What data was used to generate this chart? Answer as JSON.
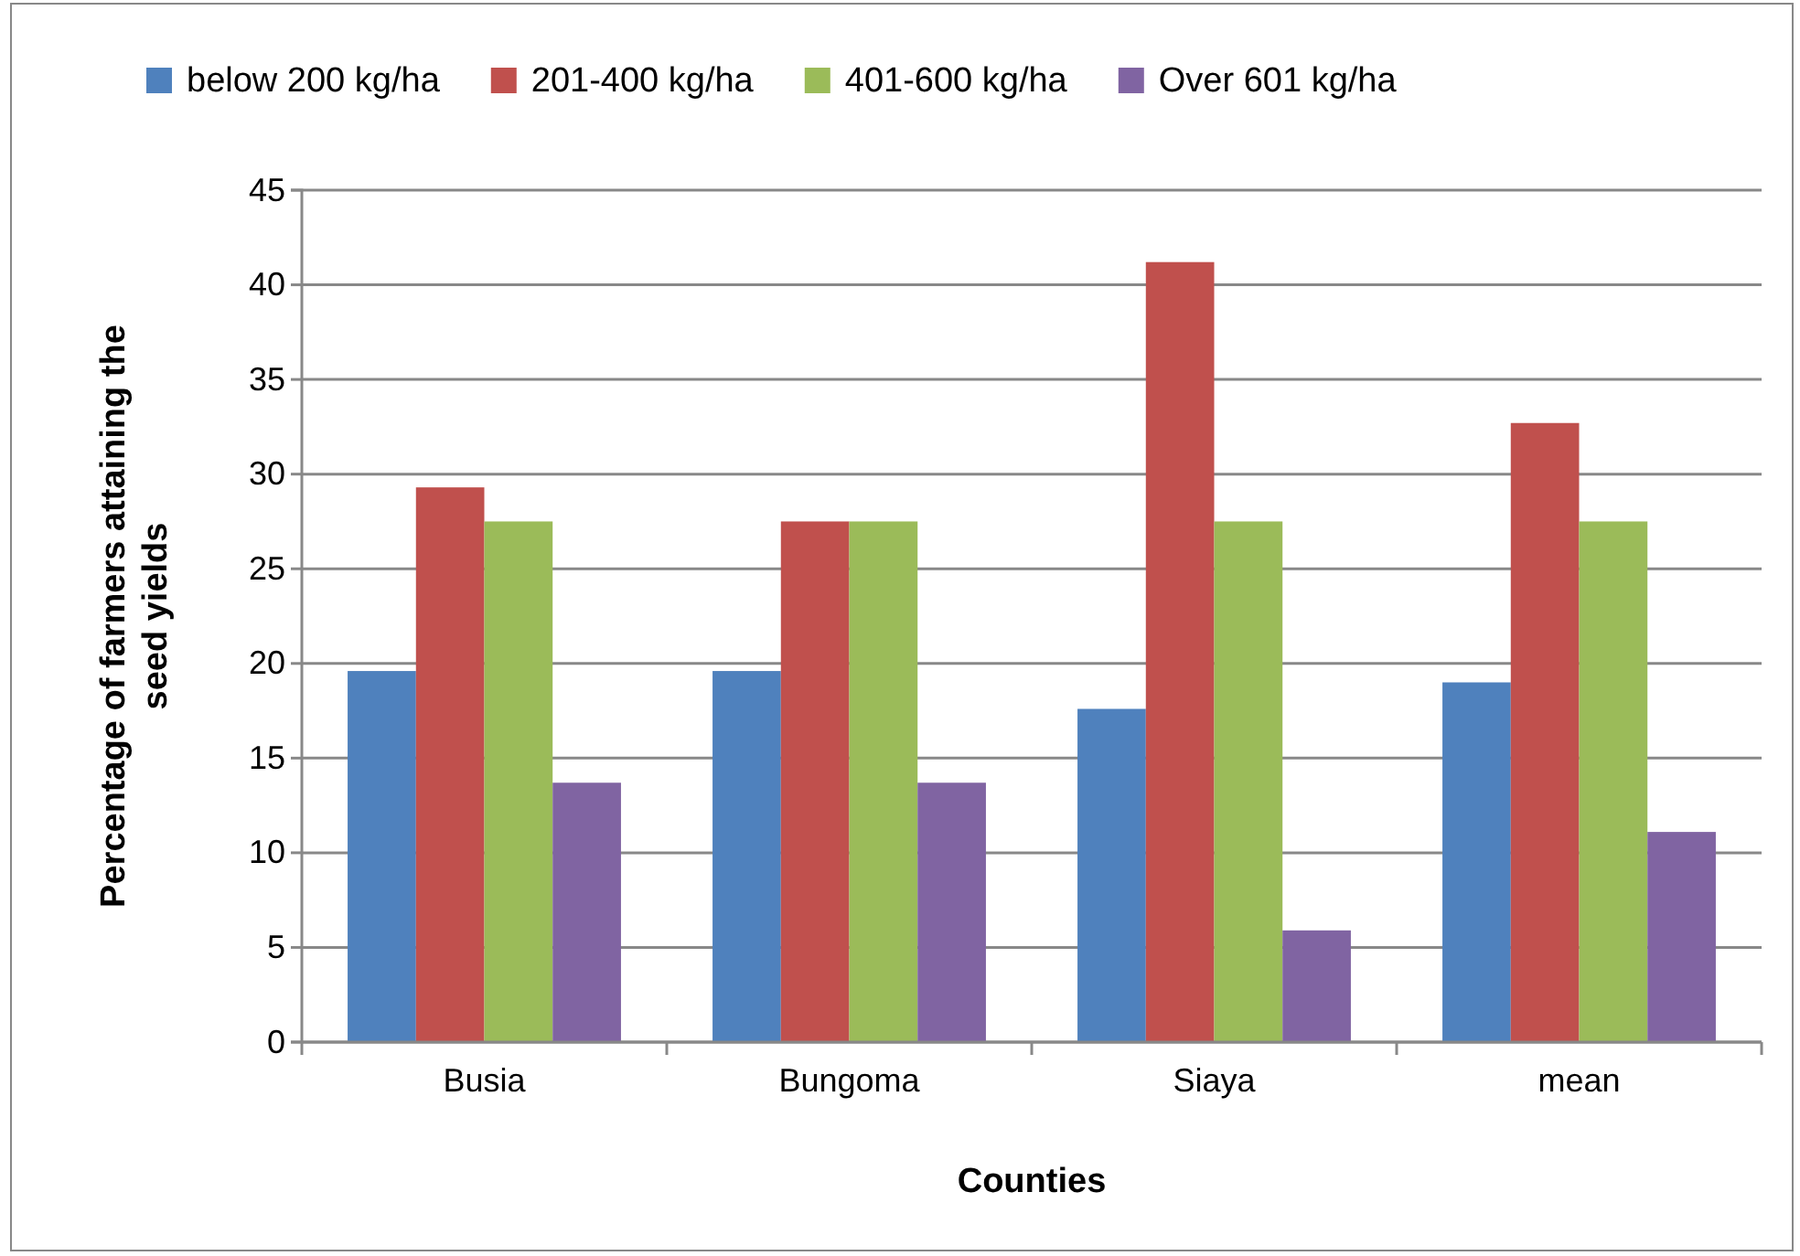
{
  "chart_data": {
    "type": "bar",
    "xlabel": "Counties",
    "ylabel": "Percentage of farmers attaining the seed yields",
    "categories": [
      "Busia",
      "Bungoma",
      "Siaya",
      "mean"
    ],
    "series": [
      {
        "name": "below 200 kg/ha",
        "color": "#4f81bd",
        "values": [
          19.6,
          19.6,
          17.6,
          19.0
        ]
      },
      {
        "name": "201-400 kg/ha",
        "color": "#c0504d",
        "values": [
          29.3,
          27.5,
          41.2,
          32.7
        ]
      },
      {
        "name": "401-600 kg/ha",
        "color": "#9bbb59",
        "values": [
          27.5,
          27.5,
          27.5,
          27.5
        ]
      },
      {
        "name": "Over 601 kg/ha",
        "color": "#8064a2",
        "values": [
          13.7,
          13.7,
          5.9,
          11.1
        ]
      }
    ],
    "ylim": [
      0,
      45
    ],
    "yticks": [
      0,
      5,
      10,
      15,
      20,
      25,
      30,
      35,
      40,
      45
    ],
    "grid": "y",
    "legend": "top"
  }
}
